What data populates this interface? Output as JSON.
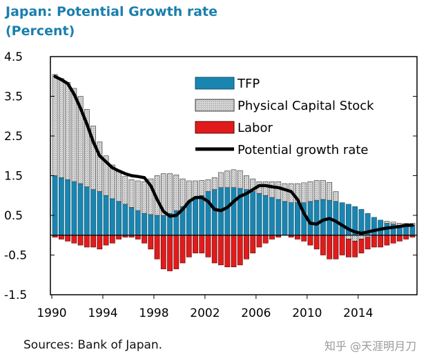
{
  "title": "Japan: Potential Growth rate",
  "subtitle": "(Percent)",
  "source": "Sources: Bank of Japan.",
  "watermark": "知乎 @天涯明月刀",
  "colors": {
    "tfp": "#1a85b0",
    "capital": "#d9d9d9",
    "labor": "#e11b1b",
    "line": "#000000",
    "title": "#1a7fae"
  },
  "chart_data": {
    "type": "bar",
    "subtype": "stacked bar with line",
    "ylim": [
      -1.5,
      4.5
    ],
    "y_ticks": [
      "4.5",
      "3.5",
      "2.5",
      "1.5",
      "0.5",
      "-0.5",
      "-1.5"
    ],
    "x_ticks": [
      "1990",
      "1994",
      "1998",
      "2002",
      "2006",
      "2010",
      "2014"
    ],
    "x_start": 1990,
    "periods_per_year": 2,
    "legend_position": "top-right",
    "grid": false,
    "series": [
      {
        "name": "TFP",
        "kind": "bar",
        "values": [
          1.5,
          1.45,
          1.4,
          1.35,
          1.3,
          1.22,
          1.15,
          1.1,
          1.0,
          0.92,
          0.85,
          0.78,
          0.7,
          0.62,
          0.55,
          0.52,
          0.5,
          0.5,
          0.55,
          0.62,
          0.72,
          0.82,
          0.92,
          1.0,
          1.1,
          1.15,
          1.2,
          1.2,
          1.2,
          1.18,
          1.15,
          1.1,
          1.05,
          1.0,
          0.95,
          0.9,
          0.85,
          0.82,
          0.82,
          0.82,
          0.85,
          0.88,
          0.9,
          0.88,
          0.85,
          0.82,
          0.78,
          0.72,
          0.65,
          0.55,
          0.45,
          0.38,
          0.3,
          0.28,
          0.25,
          0.25,
          0.25
        ]
      },
      {
        "name": "Physical Capital Stock",
        "kind": "bar",
        "values": [
          2.55,
          2.5,
          2.45,
          2.35,
          2.2,
          1.95,
          1.6,
          1.25,
          1.0,
          0.85,
          0.75,
          0.7,
          0.7,
          0.75,
          0.8,
          0.9,
          1.0,
          1.05,
          1.0,
          0.9,
          0.7,
          0.55,
          0.45,
          0.38,
          0.3,
          0.3,
          0.38,
          0.42,
          0.45,
          0.45,
          0.35,
          0.32,
          0.3,
          0.35,
          0.4,
          0.45,
          0.45,
          0.48,
          0.48,
          0.5,
          0.5,
          0.5,
          0.48,
          0.45,
          0.25,
          0.0,
          -0.1,
          -0.15,
          -0.1,
          -0.05,
          0.0,
          0.0,
          0.05,
          0.05,
          0.05,
          0.05,
          0.05
        ]
      },
      {
        "name": "Labor",
        "kind": "bar",
        "values": [
          -0.05,
          -0.1,
          -0.15,
          -0.2,
          -0.25,
          -0.3,
          -0.3,
          -0.35,
          -0.25,
          -0.2,
          -0.1,
          -0.05,
          -0.05,
          -0.1,
          -0.2,
          -0.35,
          -0.6,
          -0.85,
          -0.9,
          -0.85,
          -0.7,
          -0.55,
          -0.45,
          -0.45,
          -0.55,
          -0.7,
          -0.75,
          -0.8,
          -0.8,
          -0.75,
          -0.6,
          -0.45,
          -0.3,
          -0.2,
          -0.1,
          -0.05,
          0.0,
          -0.05,
          -0.1,
          -0.15,
          -0.25,
          -0.35,
          -0.5,
          -0.6,
          -0.6,
          -0.5,
          -0.45,
          -0.4,
          -0.35,
          -0.3,
          -0.3,
          -0.3,
          -0.25,
          -0.2,
          -0.15,
          -0.1,
          -0.05
        ]
      },
      {
        "name": "Potential growth rate",
        "kind": "line",
        "values": [
          4.0,
          3.92,
          3.82,
          3.55,
          3.2,
          2.8,
          2.35,
          2.0,
          1.85,
          1.7,
          1.62,
          1.55,
          1.5,
          1.48,
          1.45,
          1.25,
          0.9,
          0.6,
          0.48,
          0.5,
          0.65,
          0.85,
          0.95,
          0.95,
          0.85,
          0.65,
          0.62,
          0.7,
          0.85,
          0.98,
          1.05,
          1.15,
          1.25,
          1.25,
          1.22,
          1.2,
          1.15,
          1.1,
          0.9,
          0.55,
          0.3,
          0.28,
          0.38,
          0.42,
          0.35,
          0.25,
          0.15,
          0.08,
          0.05,
          0.08,
          0.12,
          0.15,
          0.18,
          0.2,
          0.22,
          0.25,
          0.25
        ]
      }
    ]
  }
}
